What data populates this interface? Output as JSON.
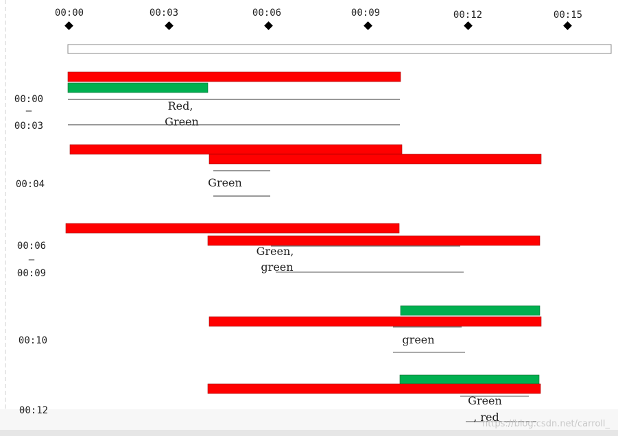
{
  "timeline": {
    "labels": [
      "00:00",
      "00:03",
      "00:06",
      "00:09",
      "00:12",
      "00:15"
    ]
  },
  "colors": {
    "red": "#ff0000",
    "green": "#00b050",
    "axis_line": "#333333",
    "frame": "#888888",
    "marker": "#000000"
  },
  "rows": [
    {
      "label_top": "00:00",
      "label_sep": "–",
      "label_bottom": "00:03",
      "note_line1": "Red,",
      "note_line2": "Green",
      "bars": [
        "red",
        "green"
      ]
    },
    {
      "label_single": "00:04",
      "note_line1": "Green",
      "bars": [
        "red",
        "red"
      ]
    },
    {
      "label_top": "00:06",
      "label_sep": "–",
      "label_bottom": "00:09",
      "note_line1": "Green,",
      "note_line2": "green",
      "bars": [
        "red",
        "red"
      ]
    },
    {
      "label_single": "00:10",
      "note_line1": "green",
      "bars": [
        "green",
        "red"
      ]
    },
    {
      "label_single": "00:12",
      "note_line1": "Green",
      "note_line2": ", red",
      "bars": [
        "green",
        "red"
      ]
    }
  ],
  "watermark": "https://blog.csdn.net/carroll_"
}
